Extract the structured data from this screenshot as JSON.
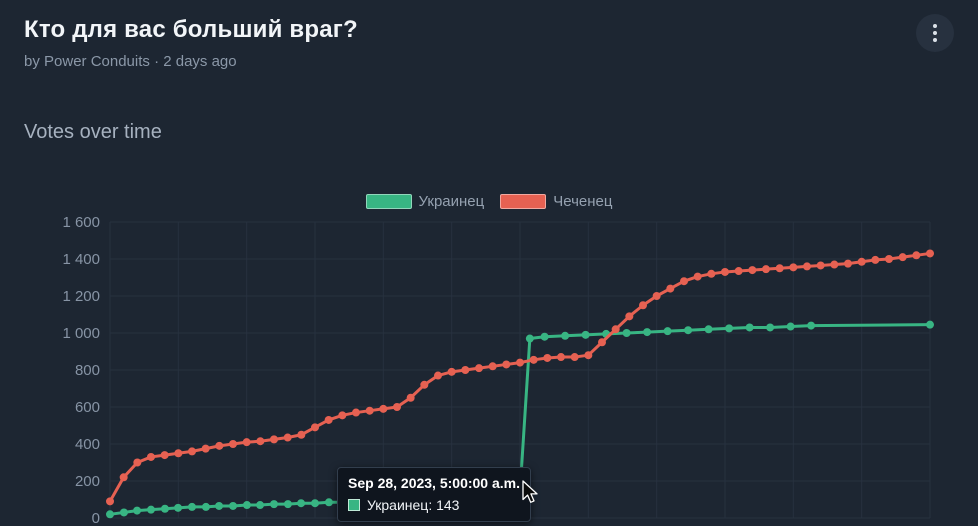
{
  "header": {
    "title": "Кто для вас больший враг?",
    "byline": "by Power Conduits · 2 days ago",
    "menu_icon": "kebab-vertical-icon"
  },
  "section": {
    "title": "Votes over time"
  },
  "tooltip": {
    "date": "Sep 28, 2023, 5:00:00 a.m.",
    "series": "Украинец",
    "value": 143,
    "label": "Украинец: 143"
  },
  "colors": {
    "background": "#1d2632",
    "grid": "#27313f",
    "axis_text": "#8794a5",
    "ukrainec": "#38b583",
    "chechenec": "#e66152",
    "tooltip_bg": "#0f151e"
  },
  "chart_data": {
    "type": "line",
    "title": "Votes over time",
    "xlabel": "",
    "ylabel": "",
    "ylim": [
      0,
      1600
    ],
    "y_ticks": [
      0,
      200,
      400,
      600,
      800,
      1000,
      1200,
      1400,
      1600
    ],
    "y_tick_labels": [
      "0",
      "200",
      "400",
      "600",
      "800",
      "1 000",
      "1 200",
      "1 400",
      "1 600"
    ],
    "grid": true,
    "legend_position": "top-center",
    "x_axis_labels_visible": false,
    "series": [
      {
        "name": "Украинец",
        "id": "ukrainec",
        "color": "#38b583",
        "x": [
          0,
          0.017,
          0.033,
          0.05,
          0.067,
          0.083,
          0.1,
          0.117,
          0.133,
          0.15,
          0.167,
          0.183,
          0.2,
          0.217,
          0.233,
          0.25,
          0.267,
          0.283,
          0.3,
          0.317,
          0.333,
          0.35,
          0.367,
          0.383,
          0.4,
          0.417,
          0.433,
          0.45,
          0.467,
          0.483,
          0.5,
          0.512,
          0.53,
          0.555,
          0.58,
          0.605,
          0.63,
          0.655,
          0.68,
          0.705,
          0.73,
          0.755,
          0.78,
          0.805,
          0.83,
          0.855,
          1.0
        ],
        "values": [
          20,
          30,
          40,
          45,
          50,
          55,
          60,
          60,
          65,
          65,
          70,
          70,
          75,
          75,
          80,
          80,
          85,
          85,
          90,
          90,
          95,
          95,
          100,
          105,
          110,
          115,
          120,
          125,
          130,
          137,
          143,
          970,
          980,
          985,
          990,
          995,
          1000,
          1005,
          1010,
          1015,
          1020,
          1025,
          1030,
          1030,
          1035,
          1040,
          1045
        ]
      },
      {
        "name": "Чеченец",
        "id": "chechenec",
        "color": "#e66152",
        "values": [
          90,
          220,
          300,
          330,
          340,
          350,
          360,
          375,
          390,
          400,
          410,
          415,
          425,
          435,
          450,
          490,
          530,
          555,
          570,
          580,
          590,
          600,
          650,
          720,
          770,
          790,
          800,
          810,
          820,
          830,
          840,
          855,
          865,
          870,
          870,
          880,
          950,
          1020,
          1090,
          1150,
          1200,
          1240,
          1280,
          1305,
          1320,
          1330,
          1335,
          1340,
          1345,
          1350,
          1355,
          1360,
          1365,
          1370,
          1375,
          1385,
          1395,
          1400,
          1410,
          1420,
          1430
        ]
      }
    ],
    "active_point": {
      "series_index": 0,
      "point_index": 30,
      "value": 143,
      "date": "Sep 28, 2023, 5:00:00 a.m."
    }
  }
}
